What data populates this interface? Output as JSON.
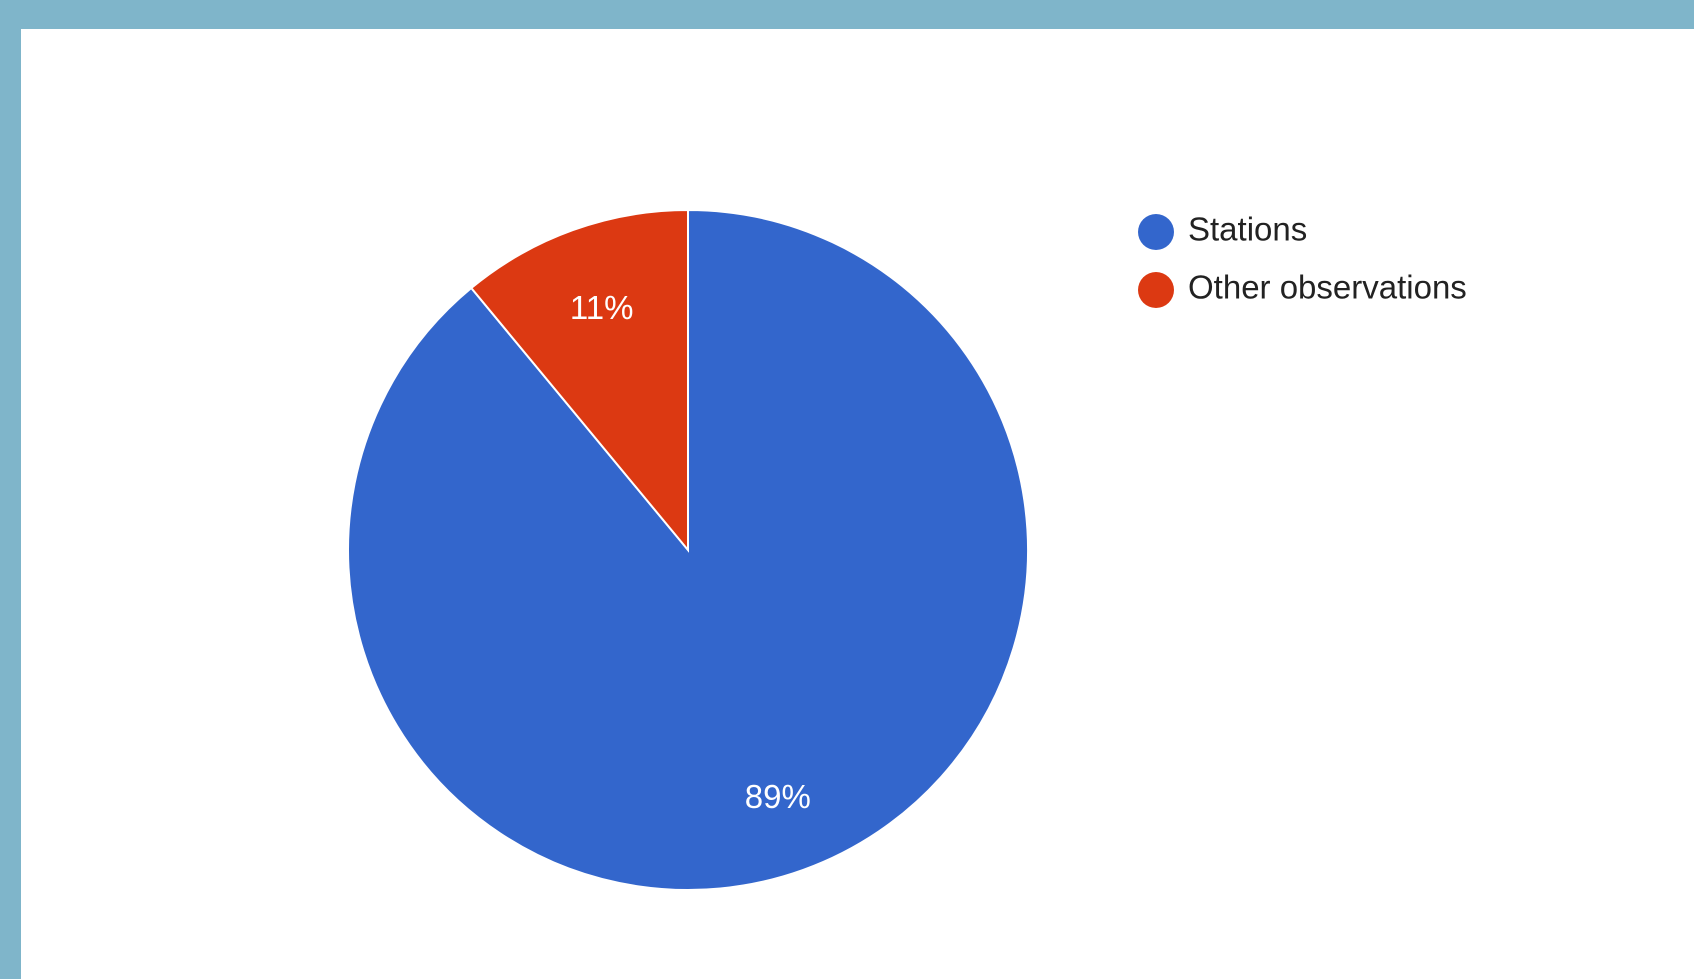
{
  "chart_data": {
    "type": "pie",
    "title": "",
    "slices": [
      {
        "label": "Stations",
        "value": 89,
        "value_label": "89%",
        "color": "#3366cc"
      },
      {
        "label": "Other observations",
        "value": 11,
        "value_label": "11%",
        "color": "#dc3912"
      }
    ],
    "start_angle": "top, counter-clockwise for first slice",
    "legend_position": "right"
  },
  "colors": {
    "frame": "#7fb5ca",
    "background": "#ffffff",
    "slice_border": "#ffffff"
  }
}
